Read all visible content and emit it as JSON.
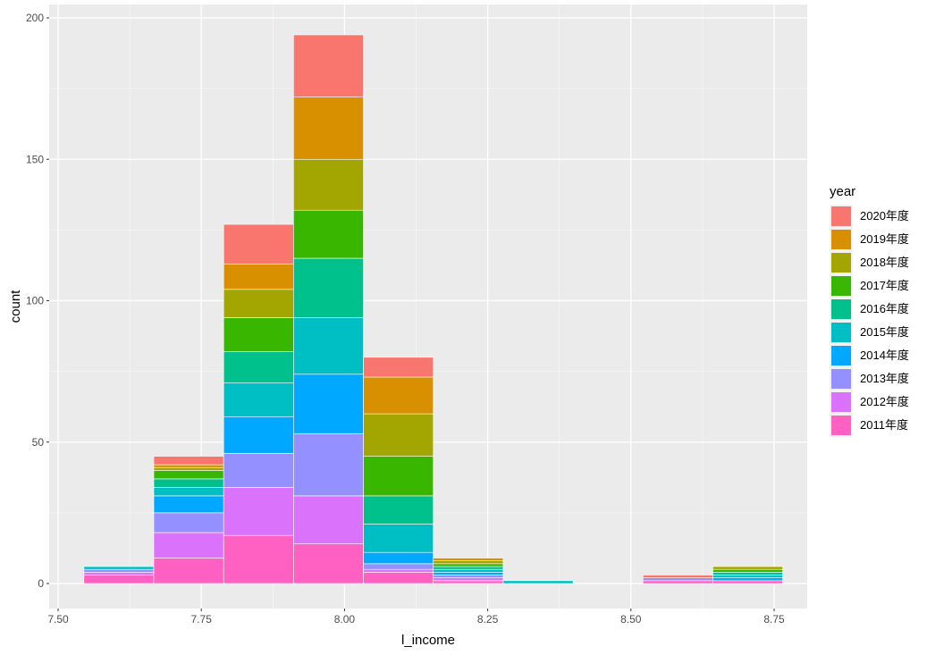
{
  "chart_data": {
    "type": "bar",
    "stacked": true,
    "xlabel": "l_income",
    "ylabel": "count",
    "xlim": [
      7.5,
      8.85
    ],
    "ylim": [
      0,
      200
    ],
    "x_ticks": [
      "7.50",
      "7.75",
      "8.00",
      "8.25",
      "8.50",
      "8.75"
    ],
    "y_ticks": [
      "0",
      "50",
      "100",
      "150",
      "200"
    ],
    "grid": true,
    "legend_title": "year",
    "legend_position": "right",
    "bins": [
      {
        "x_start": 7.545,
        "x_end": 7.667
      },
      {
        "x_start": 7.667,
        "x_end": 7.789
      },
      {
        "x_start": 7.789,
        "x_end": 7.911
      },
      {
        "x_start": 7.911,
        "x_end": 8.033
      },
      {
        "x_start": 8.033,
        "x_end": 8.155
      },
      {
        "x_start": 8.155,
        "x_end": 8.277
      },
      {
        "x_start": 8.277,
        "x_end": 8.399
      },
      {
        "x_start": 8.399,
        "x_end": 8.521
      },
      {
        "x_start": 8.521,
        "x_end": 8.643
      },
      {
        "x_start": 8.643,
        "x_end": 8.765
      }
    ],
    "series": [
      {
        "name": "2011年度",
        "color": "#FF61C3",
        "values": [
          3,
          9,
          17,
          14,
          4,
          1,
          0,
          0,
          1,
          1
        ]
      },
      {
        "name": "2012年度",
        "color": "#DB72FB",
        "values": [
          1,
          9,
          17,
          17,
          1,
          1,
          0,
          0,
          0,
          0
        ]
      },
      {
        "name": "2013年度",
        "color": "#9590FF",
        "values": [
          1,
          7,
          12,
          22,
          2,
          1,
          0,
          0,
          1,
          0
        ]
      },
      {
        "name": "2014年度",
        "color": "#00A9FF",
        "values": [
          0,
          6,
          13,
          21,
          4,
          1,
          0,
          0,
          0,
          1
        ]
      },
      {
        "name": "2015年度",
        "color": "#00BFC4",
        "values": [
          1,
          3,
          12,
          20,
          10,
          1,
          1,
          0,
          0,
          1
        ]
      },
      {
        "name": "2016年度",
        "color": "#00C08B",
        "values": [
          0,
          3,
          11,
          21,
          10,
          1,
          0,
          0,
          0,
          1
        ]
      },
      {
        "name": "2017年度",
        "color": "#39B600",
        "values": [
          0,
          3,
          12,
          17,
          14,
          1,
          0,
          0,
          0,
          1
        ]
      },
      {
        "name": "2018年度",
        "color": "#A3A500",
        "values": [
          0,
          1,
          10,
          18,
          15,
          1,
          0,
          0,
          0,
          1
        ]
      },
      {
        "name": "2019年度",
        "color": "#D89000",
        "values": [
          0,
          1,
          9,
          22,
          13,
          1,
          0,
          0,
          0,
          0
        ]
      },
      {
        "name": "2020年度",
        "color": "#F8766D",
        "values": [
          0,
          3,
          14,
          22,
          7,
          0,
          0,
          0,
          1,
          0
        ]
      }
    ]
  }
}
